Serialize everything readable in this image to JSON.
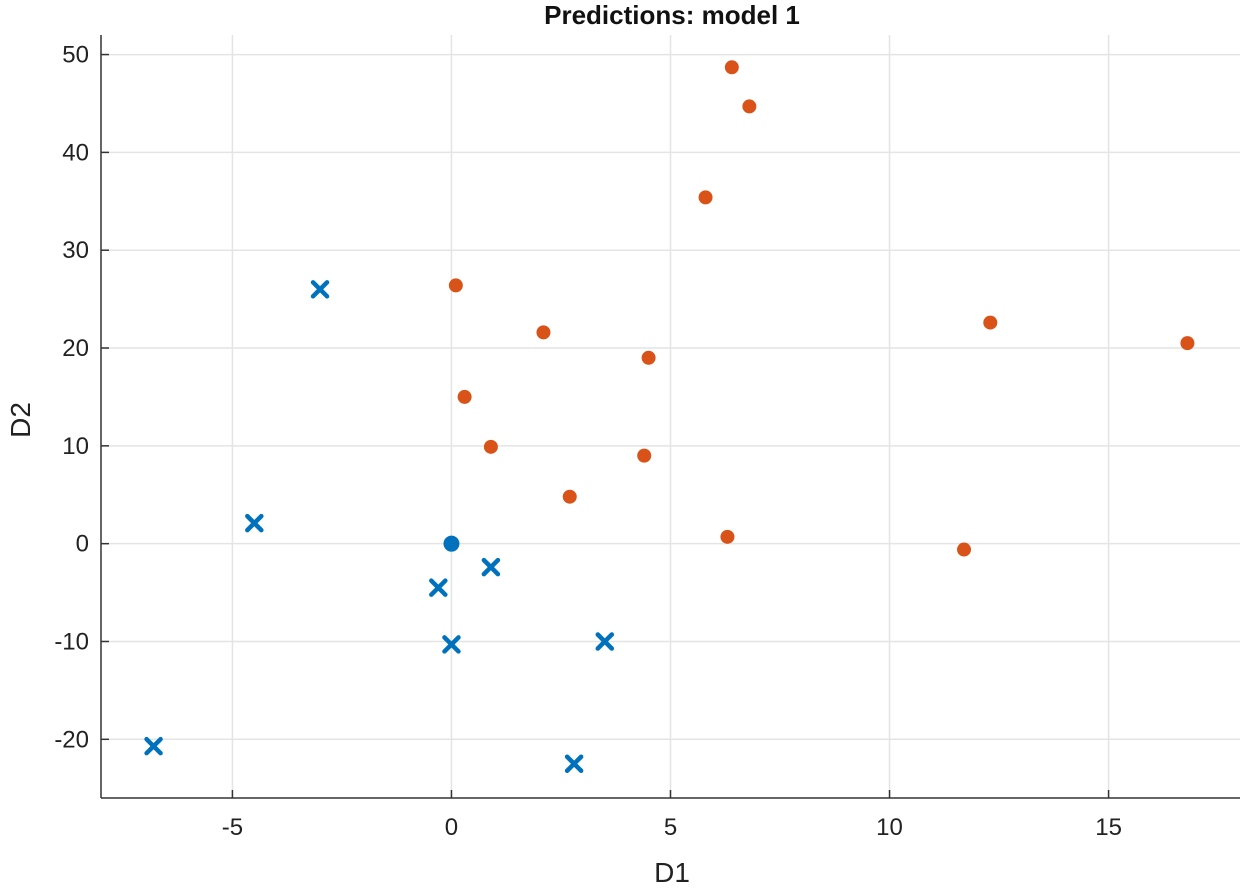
{
  "chart_data": {
    "type": "scatter",
    "title": "Predictions: model 1",
    "xlabel": "D1",
    "ylabel": "D2",
    "xlim": [
      -8,
      18
    ],
    "ylim": [
      -26,
      52
    ],
    "xticks": [
      -5,
      0,
      5,
      10,
      15
    ],
    "yticks": [
      -20,
      -10,
      0,
      10,
      20,
      30,
      40,
      50
    ],
    "grid": true,
    "series": [
      {
        "marker": "circle",
        "color": "#d95319",
        "points": [
          {
            "x": 6.4,
            "y": 48.7
          },
          {
            "x": 6.8,
            "y": 44.7
          },
          {
            "x": 5.8,
            "y": 35.4
          },
          {
            "x": 0.1,
            "y": 26.4
          },
          {
            "x": 2.1,
            "y": 21.6
          },
          {
            "x": 4.5,
            "y": 19.0
          },
          {
            "x": 12.3,
            "y": 22.6
          },
          {
            "x": 16.8,
            "y": 20.5
          },
          {
            "x": 0.3,
            "y": 15.0
          },
          {
            "x": 0.9,
            "y": 9.9
          },
          {
            "x": 4.4,
            "y": 9.0
          },
          {
            "x": 2.7,
            "y": 4.8
          },
          {
            "x": 6.3,
            "y": 0.7
          },
          {
            "x": 11.7,
            "y": -0.6
          }
        ]
      },
      {
        "marker": "cross",
        "color": "#0072bd",
        "points": [
          {
            "x": -3.0,
            "y": 26.0
          },
          {
            "x": -4.5,
            "y": 2.1
          },
          {
            "x": 0.9,
            "y": -2.4
          },
          {
            "x": -0.3,
            "y": -4.5
          },
          {
            "x": 0.0,
            "y": -10.3
          },
          {
            "x": 3.5,
            "y": -10.0
          },
          {
            "x": -6.8,
            "y": -20.7
          },
          {
            "x": 2.8,
            "y": -22.5
          }
        ]
      },
      {
        "marker": "filled-circle",
        "color": "#0072bd",
        "points": [
          {
            "x": 0.0,
            "y": 0.0
          }
        ]
      }
    ]
  }
}
